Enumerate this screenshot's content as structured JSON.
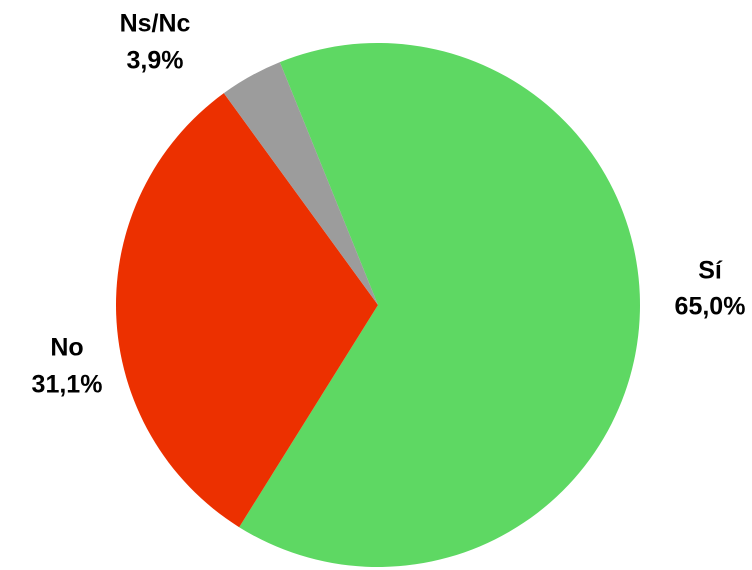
{
  "chart_data": {
    "type": "pie",
    "title": "",
    "start_angle_deg": -22,
    "slices": [
      {
        "label": "Sí",
        "value": 65.0,
        "value_label": "65,0%",
        "color": "#5ED863"
      },
      {
        "label": "No",
        "value": 31.1,
        "value_label": "31,1%",
        "color": "#EC3000"
      },
      {
        "label": "Ns/Nc",
        "value": 3.9,
        "value_label": "3,9%",
        "color": "#9C9C9C"
      }
    ]
  }
}
